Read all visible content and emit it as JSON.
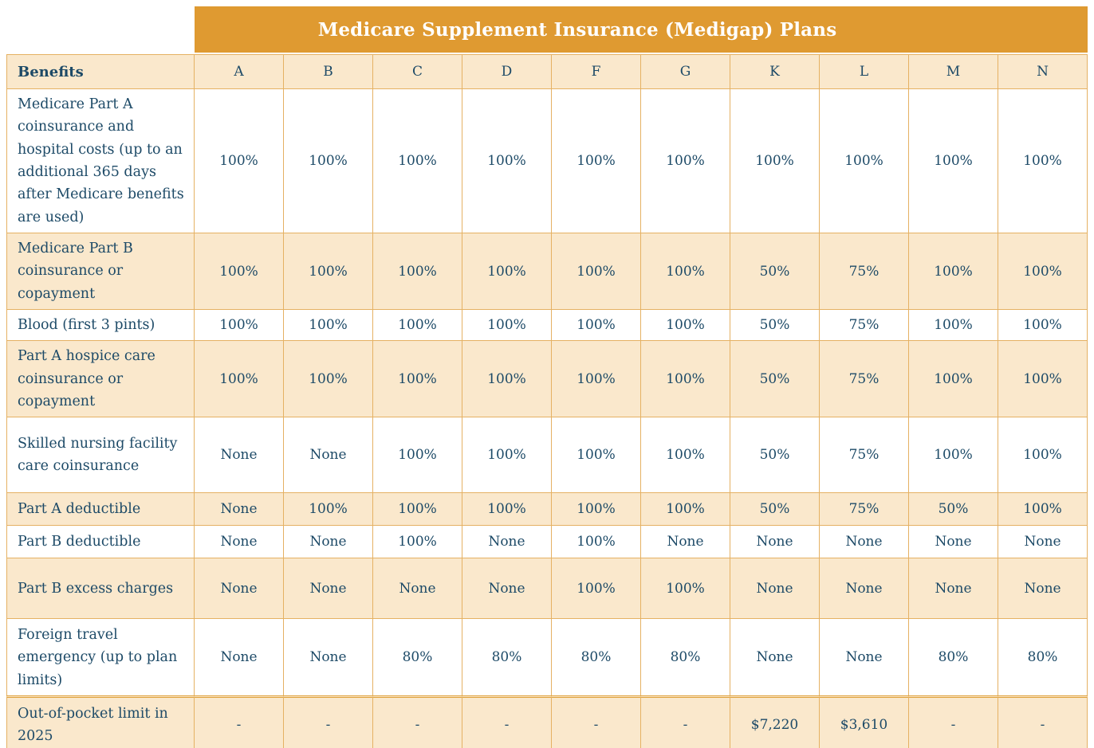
{
  "chart_data": {
    "type": "table",
    "title": "Medicare Supplement Insurance (Medigap) Plans",
    "benefits_header": "Benefits",
    "plan_columns": [
      "A",
      "B",
      "C",
      "D",
      "F",
      "G",
      "K",
      "L",
      "M",
      "N"
    ],
    "rows": [
      {
        "benefit": "Medicare Part A coinsurance and hospital costs (up to an additional 365 days after Medicare benefits are used)",
        "values": [
          "100%",
          "100%",
          "100%",
          "100%",
          "100%",
          "100%",
          "100%",
          "100%",
          "100%",
          "100%"
        ]
      },
      {
        "benefit": "Medicare Part B coinsurance or copayment",
        "values": [
          "100%",
          "100%",
          "100%",
          "100%",
          "100%",
          "100%",
          "50%",
          "75%",
          "100%",
          "100%"
        ]
      },
      {
        "benefit": "Blood (first 3 pints)",
        "values": [
          "100%",
          "100%",
          "100%",
          "100%",
          "100%",
          "100%",
          "50%",
          "75%",
          "100%",
          "100%"
        ]
      },
      {
        "benefit": "Part A hospice care coinsurance or copayment",
        "values": [
          "100%",
          "100%",
          "100%",
          "100%",
          "100%",
          "100%",
          "50%",
          "75%",
          "100%",
          "100%"
        ]
      },
      {
        "benefit": "Skilled nursing facility care coinsurance",
        "values": [
          "None",
          "None",
          "100%",
          "100%",
          "100%",
          "100%",
          "50%",
          "75%",
          "100%",
          "100%"
        ]
      },
      {
        "benefit": "Part A deductible",
        "values": [
          "None",
          "100%",
          "100%",
          "100%",
          "100%",
          "100%",
          "50%",
          "75%",
          "50%",
          "100%"
        ]
      },
      {
        "benefit": "Part B deductible",
        "values": [
          "None",
          "None",
          "100%",
          "None",
          "100%",
          "None",
          "None",
          "None",
          "None",
          "None"
        ]
      },
      {
        "benefit": "Part B excess charges",
        "values": [
          "None",
          "None",
          "None",
          "None",
          "100%",
          "100%",
          "None",
          "None",
          "None",
          "None"
        ]
      },
      {
        "benefit": "Foreign travel emergency (up to plan limits)",
        "values": [
          "None",
          "None",
          "80%",
          "80%",
          "80%",
          "80%",
          "None",
          "None",
          "80%",
          "80%"
        ]
      },
      {
        "benefit": "Out-of-pocket limit in 2025",
        "values": [
          "-",
          "-",
          "-",
          "-",
          "-",
          "-",
          "$7,220",
          "$3,610",
          "-",
          "-"
        ]
      }
    ]
  },
  "colors": {
    "banner_background": "#DF9A31",
    "banner_text": "#FFFFFF",
    "row_tint": "#FAE8CC",
    "row_white": "#FFFFFF",
    "grid_line": "#E5B163",
    "text": "#1D4A67"
  }
}
